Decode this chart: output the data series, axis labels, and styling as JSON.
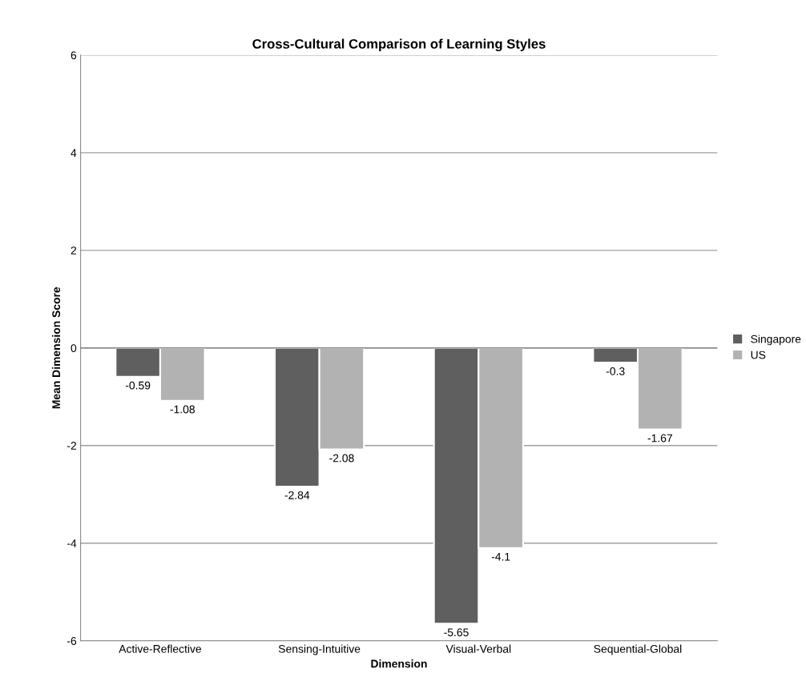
{
  "chart_data": {
    "type": "bar",
    "title": "Cross-Cultural Comparison of Learning Styles",
    "xlabel": "Dimension",
    "ylabel": "Mean Dimension Score",
    "categories": [
      "Active-Reflective",
      "Sensing-Intuitive",
      "Visual-Verbal",
      "Sequential-Global"
    ],
    "series": [
      {
        "name": "Singapore",
        "color": "#5f5f5f",
        "values": [
          -0.59,
          -2.84,
          -5.65,
          -0.3
        ]
      },
      {
        "name": "US",
        "color": "#b2b2b2",
        "values": [
          -1.08,
          -2.08,
          -4.1,
          -1.67
        ]
      }
    ],
    "ylim": [
      -6,
      6
    ],
    "yticks": [
      -6,
      -4,
      -2,
      0,
      2,
      4,
      6
    ],
    "grid": "y",
    "legend": "right",
    "data_labels": true
  }
}
